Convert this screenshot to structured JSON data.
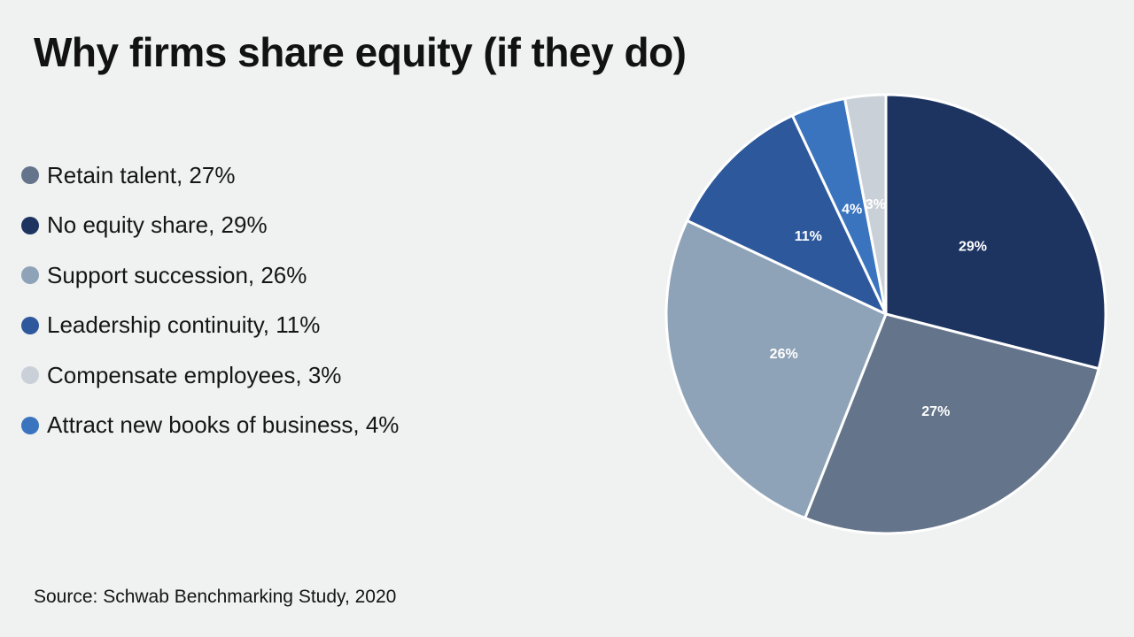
{
  "page": {
    "background": "#f0f1f1",
    "title": "Why firms share equity (if they do)",
    "source": "Source: Schwab Benchmarking Study, 2020"
  },
  "legend": {
    "position": "left",
    "items": [
      {
        "text": "Retain talent, 27%",
        "color": "#64748a"
      },
      {
        "text": "No equity share, 29%",
        "color": "#1d3461"
      },
      {
        "text": "Support succession, 26%",
        "color": "#8fa3b8"
      },
      {
        "text": "Leadership continuity, 11%",
        "color": "#2d589c"
      },
      {
        "text": "Compensate employees, 3%",
        "color": "#cad0d7"
      },
      {
        "text": "Attract new books of business, 4%",
        "color": "#3a74bf"
      }
    ]
  },
  "chart_data": {
    "type": "pie",
    "title": "Why firms share equity (if they do)",
    "source": "Source: Schwab Benchmarking Study, 2020",
    "legend_position": "left",
    "start_at": "12 o'clock",
    "direction": "clockwise",
    "slice_border_color": "#ffffff",
    "data_label_color": "#ffffff",
    "slices": [
      {
        "label": "No equity share",
        "value": 29,
        "data_label": "29%",
        "color": "#1d3461"
      },
      {
        "label": "Retain talent",
        "value": 27,
        "data_label": "27%",
        "color": "#64748a"
      },
      {
        "label": "Support succession",
        "value": 26,
        "data_label": "26%",
        "color": "#8fa3b8"
      },
      {
        "label": "Leadership continuity",
        "value": 11,
        "data_label": "11%",
        "color": "#2d589c"
      },
      {
        "label": "Attract new books of business",
        "value": 4,
        "data_label": "4%",
        "color": "#3a74bf"
      },
      {
        "label": "Compensate employees",
        "value": 3,
        "data_label": "3%",
        "color": "#cad0d7"
      }
    ]
  }
}
